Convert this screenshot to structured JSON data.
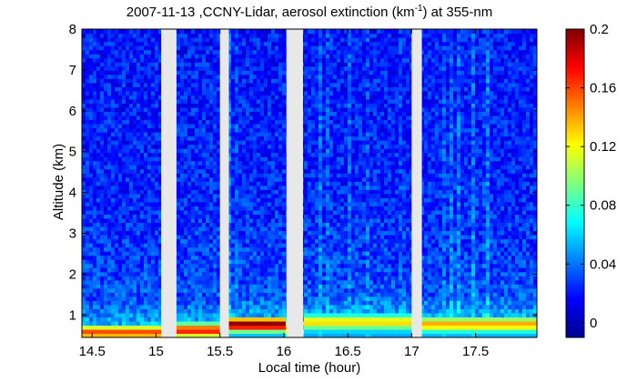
{
  "chart_data": {
    "type": "heatmap",
    "title": {
      "prefix": "2007-11-13 ,CCNY-Lidar, aerosol extinction (km",
      "superscript": "-1",
      "suffix": ") at 355-nm"
    },
    "xlabel": "Local time (hour)",
    "ylabel": "Altitude (km)",
    "xlim": [
      14.42,
      17.98
    ],
    "ylim": [
      0.45,
      8.0
    ],
    "x_ticks": [
      14.5,
      15,
      15.5,
      16,
      16.5,
      17,
      17.5
    ],
    "x_tick_labels": [
      "14.5",
      "15",
      "15.5",
      "16",
      "16.5",
      "17",
      "17.5"
    ],
    "y_ticks": [
      1,
      2,
      3,
      4,
      5,
      6,
      7,
      8
    ],
    "y_tick_labels": [
      "1",
      "2",
      "3",
      "4",
      "5",
      "6",
      "7",
      "8"
    ],
    "data_gaps": [
      [
        15.04,
        15.16
      ],
      [
        15.5,
        15.57
      ],
      [
        16.02,
        16.15
      ],
      [
        17.0,
        17.08
      ]
    ],
    "boundary_layer": {
      "description": "aerosol layer near surface",
      "segments": [
        {
          "x": [
            14.42,
            15.04
          ],
          "top_km": 0.8,
          "peak_value": 0.16
        },
        {
          "x": [
            15.16,
            15.5
          ],
          "top_km": 0.85,
          "peak_value": 0.17
        },
        {
          "x": [
            15.57,
            16.02
          ],
          "top_km": 1.0,
          "peak_value": 0.2
        },
        {
          "x": [
            16.15,
            17.0
          ],
          "top_km": 1.05,
          "peak_value": 0.13
        },
        {
          "x": [
            17.08,
            17.98
          ],
          "top_km": 1.0,
          "peak_value": 0.14
        }
      ],
      "background_value_low": 0.04,
      "background_value_high": 0.02
    },
    "colorbar": {
      "range": [
        -0.01,
        0.2
      ],
      "ticks": [
        0,
        0.04,
        0.08,
        0.12,
        0.16,
        0.2
      ],
      "tick_labels": [
        "0",
        "0.04",
        "0.08",
        "0.12",
        "0.16",
        "0.2"
      ],
      "colormap": "jet"
    },
    "grid": false,
    "legend": "none"
  },
  "colors": {
    "gap": "#e8e8e8",
    "axis": "#000000",
    "background": "#ffffff"
  }
}
